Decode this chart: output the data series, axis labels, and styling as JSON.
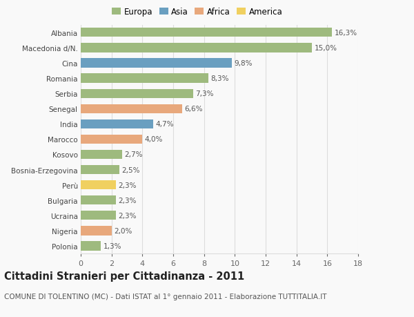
{
  "countries": [
    "Albania",
    "Macedonia d/N.",
    "Cina",
    "Romania",
    "Serbia",
    "Senegal",
    "India",
    "Marocco",
    "Kosovo",
    "Bosnia-Erzegovina",
    "Perù",
    "Bulgaria",
    "Ucraina",
    "Nigeria",
    "Polonia"
  ],
  "values": [
    16.3,
    15.0,
    9.8,
    8.3,
    7.3,
    6.6,
    4.7,
    4.0,
    2.7,
    2.5,
    2.3,
    2.3,
    2.3,
    2.0,
    1.3
  ],
  "labels": [
    "16,3%",
    "15,0%",
    "9,8%",
    "8,3%",
    "7,3%",
    "6,6%",
    "4,7%",
    "4,0%",
    "2,7%",
    "2,5%",
    "2,3%",
    "2,3%",
    "2,3%",
    "2,0%",
    "1,3%"
  ],
  "continents": [
    "Europa",
    "Europa",
    "Asia",
    "Europa",
    "Europa",
    "Africa",
    "Asia",
    "Africa",
    "Europa",
    "Europa",
    "America",
    "Europa",
    "Europa",
    "Africa",
    "Europa"
  ],
  "continent_colors": {
    "Europa": "#9eba7e",
    "Asia": "#6a9fc0",
    "Africa": "#e8a87c",
    "America": "#f0d060"
  },
  "legend_order": [
    "Europa",
    "Asia",
    "Africa",
    "America"
  ],
  "xlim": [
    0,
    18
  ],
  "xticks": [
    0,
    2,
    4,
    6,
    8,
    10,
    12,
    14,
    16,
    18
  ],
  "title": "Cittadini Stranieri per Cittadinanza - 2011",
  "subtitle": "COMUNE DI TOLENTINO (MC) - Dati ISTAT al 1° gennaio 2011 - Elaborazione TUTTITALIA.IT",
  "background_color": "#f9f9f9",
  "bar_height": 0.6,
  "grid_color": "#dddddd",
  "label_fontsize": 7.5,
  "ytick_fontsize": 7.5,
  "xtick_fontsize": 8.0,
  "title_fontsize": 10.5,
  "subtitle_fontsize": 7.5,
  "legend_fontsize": 8.5
}
